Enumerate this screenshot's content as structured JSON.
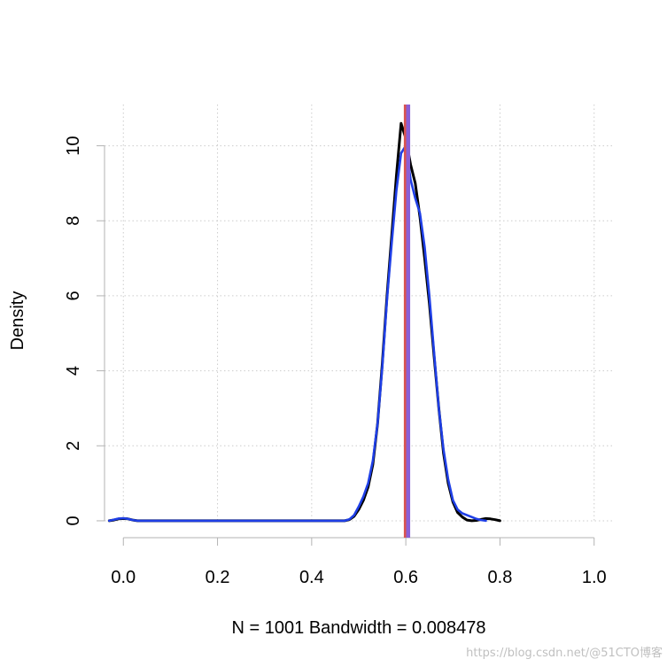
{
  "chart_data": {
    "type": "line",
    "title": "",
    "xlabel": "N = 1001   Bandwidth = 0.008478",
    "ylabel": "Density",
    "xlim": [
      -0.04,
      1.04
    ],
    "ylim": [
      -0.45,
      11.1
    ],
    "x_ticks": [
      0.0,
      0.2,
      0.4,
      0.6,
      0.8,
      1.0
    ],
    "x_tick_labels": [
      "0.0",
      "0.2",
      "0.4",
      "0.6",
      "0.8",
      "1.0"
    ],
    "y_ticks": [
      0,
      2,
      4,
      6,
      8,
      10
    ],
    "y_tick_labels": [
      "0",
      "2",
      "4",
      "6",
      "8",
      "10"
    ],
    "grid": true,
    "series": [
      {
        "color": "#000000",
        "x": [
          -0.03,
          -0.02,
          -0.01,
          0.0,
          0.01,
          0.02,
          0.03,
          0.1,
          0.2,
          0.3,
          0.4,
          0.47,
          0.48,
          0.49,
          0.5,
          0.51,
          0.52,
          0.53,
          0.54,
          0.55,
          0.56,
          0.57,
          0.58,
          0.59,
          0.6,
          0.61,
          0.62,
          0.63,
          0.64,
          0.65,
          0.66,
          0.67,
          0.68,
          0.69,
          0.7,
          0.71,
          0.72,
          0.73,
          0.74,
          0.75,
          0.76,
          0.77,
          0.78,
          0.79,
          0.8
        ],
        "y": [
          0.0,
          0.02,
          0.05,
          0.06,
          0.05,
          0.02,
          0.0,
          0.0,
          0.0,
          0.0,
          0.0,
          0.0,
          0.03,
          0.12,
          0.3,
          0.55,
          0.9,
          1.5,
          2.6,
          4.2,
          6.0,
          7.6,
          9.2,
          10.6,
          10.2,
          9.5,
          9.0,
          8.1,
          7.0,
          5.8,
          4.4,
          3.0,
          1.8,
          1.0,
          0.5,
          0.22,
          0.1,
          0.02,
          0.0,
          0.01,
          0.04,
          0.06,
          0.05,
          0.03,
          0.0
        ]
      },
      {
        "color": "#1f3fe6",
        "x": [
          -0.03,
          -0.02,
          -0.01,
          0.0,
          0.01,
          0.02,
          0.03,
          0.1,
          0.2,
          0.3,
          0.4,
          0.47,
          0.48,
          0.49,
          0.5,
          0.51,
          0.52,
          0.53,
          0.54,
          0.55,
          0.56,
          0.57,
          0.58,
          0.59,
          0.6,
          0.61,
          0.62,
          0.63,
          0.64,
          0.65,
          0.66,
          0.67,
          0.68,
          0.69,
          0.7,
          0.71,
          0.72,
          0.73,
          0.74,
          0.75,
          0.76,
          0.77
        ],
        "y": [
          0.0,
          0.03,
          0.06,
          0.07,
          0.05,
          0.02,
          0.0,
          0.0,
          0.0,
          0.0,
          0.0,
          0.0,
          0.04,
          0.15,
          0.38,
          0.65,
          1.0,
          1.6,
          2.6,
          4.1,
          5.9,
          7.4,
          8.8,
          9.8,
          10.0,
          9.1,
          8.6,
          8.2,
          7.3,
          6.0,
          4.5,
          3.0,
          1.9,
          1.1,
          0.55,
          0.3,
          0.2,
          0.15,
          0.1,
          0.05,
          0.02,
          0.0
        ]
      }
    ],
    "vlines": [
      {
        "x": 0.6,
        "color": "#d9534f"
      },
      {
        "x": 0.605,
        "color": "#8a5fd6"
      }
    ],
    "colors": {
      "axis": "#b3b3b3",
      "grid": "#cccccc",
      "text": "#000000"
    }
  },
  "watermark": "https://blog.csdn.net/@51CTO博客"
}
